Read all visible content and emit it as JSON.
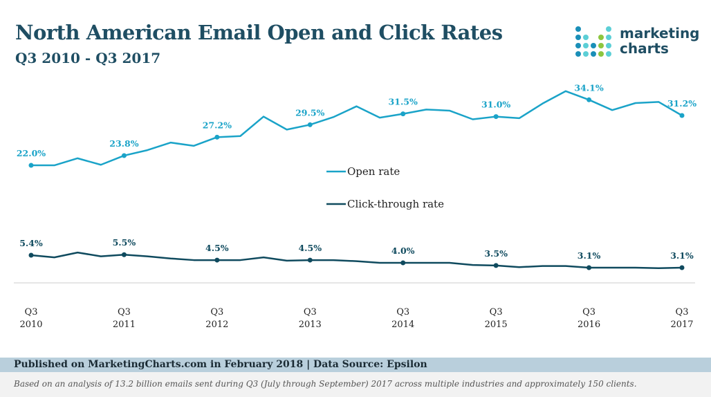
{
  "header": {
    "title": "North American Email Open and Click Rates",
    "subtitle": "Q3 2010 - Q3 2017",
    "logo_text": [
      "marketing",
      "charts"
    ]
  },
  "footer": {
    "published": "Published on MarketingCharts.com in February 2018 | Data Source: Epsilon",
    "note": "Based on an analysis of 13.2 billion emails sent during Q3 (July through September) 2017 across multiple industries and approximately 150 clients."
  },
  "colors": {
    "open": "#1aa3c8",
    "click": "#0f4a5e"
  },
  "chart_data": {
    "type": "line",
    "title": "North American Email Open and Click Rates",
    "subtitle": "Q3 2010 - Q3 2017",
    "x_tick_labels": [
      [
        "Q3",
        "2010"
      ],
      [
        "Q3",
        "2011"
      ],
      [
        "Q3",
        "2012"
      ],
      [
        "Q3",
        "2013"
      ],
      [
        "Q3",
        "2014"
      ],
      [
        "Q3",
        "2015"
      ],
      [
        "Q3",
        "2016"
      ],
      [
        "Q3",
        "2017"
      ]
    ],
    "ylim": [
      0,
      37
    ],
    "legend": {
      "placement": "center",
      "entries": [
        "Open rate",
        "Click-through rate"
      ]
    },
    "series": [
      {
        "name": "Open rate",
        "values": [
          22.0,
          22.0,
          23.3,
          22.1,
          23.8,
          24.8,
          26.2,
          25.6,
          27.2,
          27.4,
          31.0,
          28.6,
          29.5,
          30.9,
          32.9,
          30.8,
          31.5,
          32.3,
          32.1,
          30.5,
          31.0,
          30.7,
          33.4,
          35.7,
          34.1,
          32.2,
          33.5,
          33.7,
          31.2
        ],
        "labels": {
          "0": "22.0%",
          "4": "23.8%",
          "8": "27.2%",
          "12": "29.5%",
          "16": "31.5%",
          "20": "31.0%",
          "24": "34.1%",
          "28": "31.2%"
        }
      },
      {
        "name": "Click-through rate",
        "values": [
          5.4,
          5.0,
          5.9,
          5.2,
          5.5,
          5.2,
          4.8,
          4.5,
          4.5,
          4.5,
          5.0,
          4.4,
          4.5,
          4.5,
          4.3,
          4.0,
          4.0,
          4.0,
          4.0,
          3.6,
          3.5,
          3.2,
          3.4,
          3.4,
          3.1,
          3.1,
          3.1,
          3.0,
          3.1
        ],
        "labels": {
          "0": "5.4%",
          "4": "5.5%",
          "8": "4.5%",
          "12": "4.5%",
          "16": "4.0%",
          "20": "3.5%",
          "24": "3.1%",
          "28": "3.1%"
        }
      }
    ]
  }
}
